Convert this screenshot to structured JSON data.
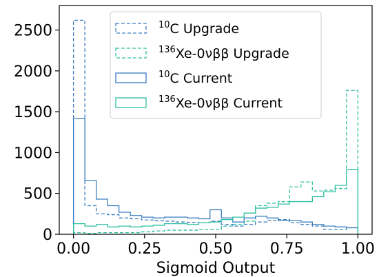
{
  "chart_data": {
    "type": "histogram",
    "xlabel": "Sigmoid Output",
    "ylabel": "",
    "xlim": [
      -0.05,
      1.05
    ],
    "ylim": [
      0,
      2800
    ],
    "x_ticks": [
      "0.00",
      "0.25",
      "0.50",
      "0.75",
      "1.00"
    ],
    "x_tick_values": [
      0.0,
      0.25,
      0.5,
      0.75,
      1.0
    ],
    "y_ticks": [
      "0",
      "500",
      "1000",
      "1500",
      "2000",
      "2500"
    ],
    "y_tick_values": [
      0,
      500,
      1000,
      1500,
      2000,
      2500
    ],
    "bin_edges": [
      0.0,
      0.04,
      0.08,
      0.12,
      0.16,
      0.2,
      0.24,
      0.28,
      0.32,
      0.36,
      0.4,
      0.44,
      0.48,
      0.52,
      0.56,
      0.6,
      0.64,
      0.68,
      0.72,
      0.76,
      0.8,
      0.84,
      0.88,
      0.92,
      0.96,
      1.0
    ],
    "legend_position": "upper-center",
    "series": [
      {
        "name": "¹⁰C Upgrade",
        "legend": {
          "sup": "10",
          "text": "C Upgrade"
        },
        "color": "#3a7dbf",
        "linestyle": "dashed",
        "values": [
          2620,
          350,
          250,
          240,
          200,
          190,
          175,
          165,
          160,
          150,
          145,
          140,
          160,
          120,
          100,
          120,
          150,
          170,
          180,
          140,
          120,
          100,
          60,
          60,
          80
        ]
      },
      {
        "name": "¹³⁶Xe-0νββ Upgrade",
        "legend": {
          "sup": "136",
          "text": "Xe-0νββ Upgrade"
        },
        "color": "#2ebfa0",
        "linestyle": "dashed",
        "values": [
          20,
          10,
          20,
          20,
          20,
          20,
          30,
          40,
          50,
          50,
          50,
          60,
          60,
          100,
          120,
          160,
          350,
          380,
          400,
          580,
          640,
          530,
          540,
          560,
          1760
        ]
      },
      {
        "name": "¹⁰C Current",
        "legend": {
          "sup": "10",
          "text": "C Current"
        },
        "color": "#3a7dbf",
        "linestyle": "solid",
        "values": [
          1420,
          660,
          430,
          350,
          270,
          230,
          210,
          200,
          210,
          210,
          200,
          190,
          300,
          200,
          150,
          200,
          220,
          200,
          170,
          170,
          150,
          120,
          100,
          90,
          80
        ]
      },
      {
        "name": "¹³⁶Xe-0νββ Current",
        "legend": {
          "sup": "136",
          "text": "Xe-0νββ Current"
        },
        "color": "#2ebfa0",
        "linestyle": "solid",
        "values": [
          130,
          100,
          120,
          90,
          100,
          90,
          100,
          110,
          130,
          130,
          120,
          140,
          150,
          180,
          210,
          260,
          320,
          330,
          370,
          400,
          400,
          460,
          520,
          600,
          790
        ]
      }
    ]
  }
}
